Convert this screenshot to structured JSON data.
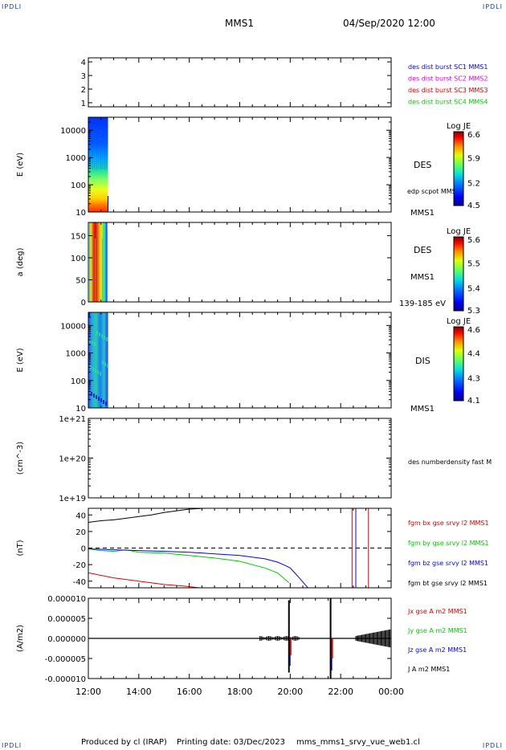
{
  "header": {
    "corner_tl": "IPDLI",
    "corner_tr": "IPDLI",
    "corner_bl": "IPDLI",
    "corner_br": "IPDLI",
    "mission": "MMS1",
    "datetime": "04/Sep/2020 12:00"
  },
  "footer": {
    "produced_by": "Produced by cl (IRAP)",
    "printing_date": "Printing date: 03/Dec/2023",
    "filename": "mms_mms1_srvy_vue_web1.cl"
  },
  "colors": {
    "blue": "#0000ff",
    "magenta": "#e000e0",
    "red": "#e00000",
    "green": "#00cc00",
    "black": "#000000"
  },
  "chart_data": [
    {
      "type": "line",
      "panel": "burst-flags",
      "ylabel": "",
      "yticks": [
        "1",
        "2",
        "3",
        "4"
      ],
      "ylim": [
        0.7,
        4.3
      ],
      "legend": [
        {
          "label": "des dist burst SC1 MMS1",
          "color": "#0000ff"
        },
        {
          "label": "des dist burst SC2 MMS2",
          "color": "#e000e0"
        },
        {
          "label": "des dist burst SC3 MMS3",
          "color": "#e00000"
        },
        {
          "label": "des dist burst SC4 MMS4",
          "color": "#00cc00"
        }
      ],
      "series": []
    },
    {
      "type": "heatmap",
      "panel": "des-energy",
      "ylabel": "E (eV)",
      "yscale": "log",
      "yticks": [
        "10",
        "100",
        "1000",
        "10000"
      ],
      "ylim": [
        10,
        30000
      ],
      "side_label": "DES",
      "side_note": "edp scpot MMS1",
      "spacecraft": "MMS1",
      "colorbar": {
        "title": "Log JE",
        "ticks": [
          "6.6",
          "5.9",
          "5.2",
          "4.5"
        ],
        "range": [
          4.5,
          6.6
        ]
      },
      "data_x_range": [
        "12:00",
        "12:45"
      ]
    },
    {
      "type": "heatmap",
      "panel": "des-pitch",
      "ylabel": "a (deg)",
      "yticks": [
        "0",
        "50",
        "100",
        "150"
      ],
      "ylim": [
        0,
        180
      ],
      "side_label": "DES",
      "spacecraft": "MMS1",
      "energy_range": "139-185 eV",
      "colorbar": {
        "title": "Log JE",
        "ticks": [
          "5.6",
          "5.5",
          "5.4",
          "5.3"
        ],
        "range": [
          5.3,
          5.6
        ]
      },
      "data_x_range": [
        "12:00",
        "12:45"
      ]
    },
    {
      "type": "heatmap",
      "panel": "dis-energy",
      "ylabel": "E (eV)",
      "yscale": "log",
      "yticks": [
        "10",
        "100",
        "1000",
        "10000"
      ],
      "ylim": [
        10,
        30000
      ],
      "side_label": "DIS",
      "spacecraft": "MMS1",
      "colorbar": {
        "title": "Log JE",
        "ticks": [
          "4.6",
          "4.4",
          "4.3",
          "4.1"
        ],
        "range": [
          4.1,
          4.6
        ]
      },
      "data_x_range": [
        "12:00",
        "12:45"
      ]
    },
    {
      "type": "line",
      "panel": "density",
      "ylabel": "(cm^-3)",
      "yscale": "log",
      "yticks": [
        "1e+19",
        "1e+20",
        "1e+21"
      ],
      "ylim": [
        1e+19,
        1e+21
      ],
      "legend": [
        {
          "label": "des numberdensity fast M",
          "color": "#000000"
        }
      ],
      "series": []
    },
    {
      "type": "line",
      "panel": "fgm",
      "ylabel": "(nT)",
      "yticks": [
        "-40",
        "-20",
        "0",
        "20",
        "40"
      ],
      "ylim": [
        -48,
        48
      ],
      "legend": [
        {
          "label": "fgm bx gse srvy l2 MMS1",
          "color": "#e00000"
        },
        {
          "label": "fgm by gse srvy l2 MMS1",
          "color": "#00cc00"
        },
        {
          "label": "fgm bz gse srvy l2 MMS1",
          "color": "#0000ff"
        },
        {
          "label": "fgm bt gse srvy l2 MMS1",
          "color": "#000000"
        }
      ],
      "series": [
        {
          "name": "fgm bx gse srvy l2 MMS1",
          "color": "#e00000",
          "x": [
            0,
            0.5,
            1.0,
            2.0,
            3.0,
            3.8,
            4.4
          ],
          "y": [
            -30,
            -33,
            -36,
            -40,
            -44,
            -46,
            -48
          ]
        },
        {
          "name": "fgm by gse srvy l2 MMS1",
          "color": "#00cc00",
          "x": [
            0,
            0.5,
            1.0,
            1.5,
            2.0,
            3.0,
            4.0,
            5.0,
            6.0,
            7.0,
            7.5,
            7.8,
            7.95
          ],
          "y": [
            -1,
            -3,
            -4,
            -2,
            -5,
            -6,
            -9,
            -12,
            -16,
            -24,
            -30,
            -38,
            -42
          ]
        },
        {
          "name": "fgm bz gse srvy l2 MMS1",
          "color": "#0000ff",
          "x": [
            0,
            1.0,
            2.0,
            3.0,
            4.0,
            5.0,
            6.0,
            7.0,
            7.5,
            7.8,
            8.0,
            8.3,
            8.7
          ],
          "y": [
            -1,
            -2,
            -3,
            -4,
            -5,
            -7,
            -9,
            -13,
            -17,
            -21,
            -24,
            -34,
            -48
          ]
        },
        {
          "name": "fgm bt gse srvy l2 MMS1",
          "color": "#000000",
          "x": [
            0,
            0.5,
            1.0,
            1.5,
            2.0,
            2.5,
            3.0,
            3.5,
            4.0,
            4.6
          ],
          "y": [
            31,
            33,
            34,
            36,
            38,
            40,
            43,
            45,
            47,
            48
          ]
        }
      ],
      "spikes": [
        {
          "x": 10.45,
          "color": "#e00000"
        },
        {
          "x": 11.1,
          "color": "#e00000"
        },
        {
          "x": 10.6,
          "color": "#0000ff"
        }
      ],
      "zero_line": true
    },
    {
      "type": "line",
      "panel": "current",
      "ylabel": "(A/m2)",
      "yticks": [
        "-0.000010",
        "-0.000005",
        "0.000000",
        "0.000005",
        "0.000010"
      ],
      "ylim": [
        -1e-05,
        1e-05
      ],
      "legend": [
        {
          "label": "Jx gse A m2 MMS1",
          "color": "#e00000"
        },
        {
          "label": "Jy gse A m2 MMS1",
          "color": "#00cc00"
        },
        {
          "label": "Jz gse A m2 MMS1",
          "color": "#0000ff"
        },
        {
          "label": "J A m2 MMS1",
          "color": "#000000"
        }
      ],
      "spikes": [
        {
          "x": 7.95,
          "top": 9.5e-06,
          "bottom": -8.5e-06
        },
        {
          "x": 9.6,
          "top": 1e-05,
          "bottom": -1e-05
        }
      ]
    }
  ],
  "xaxis": {
    "ticks": [
      "12:00",
      "14:00",
      "16:00",
      "18:00",
      "20:00",
      "22:00",
      "00:00"
    ],
    "range_hours": [
      0,
      12
    ]
  }
}
